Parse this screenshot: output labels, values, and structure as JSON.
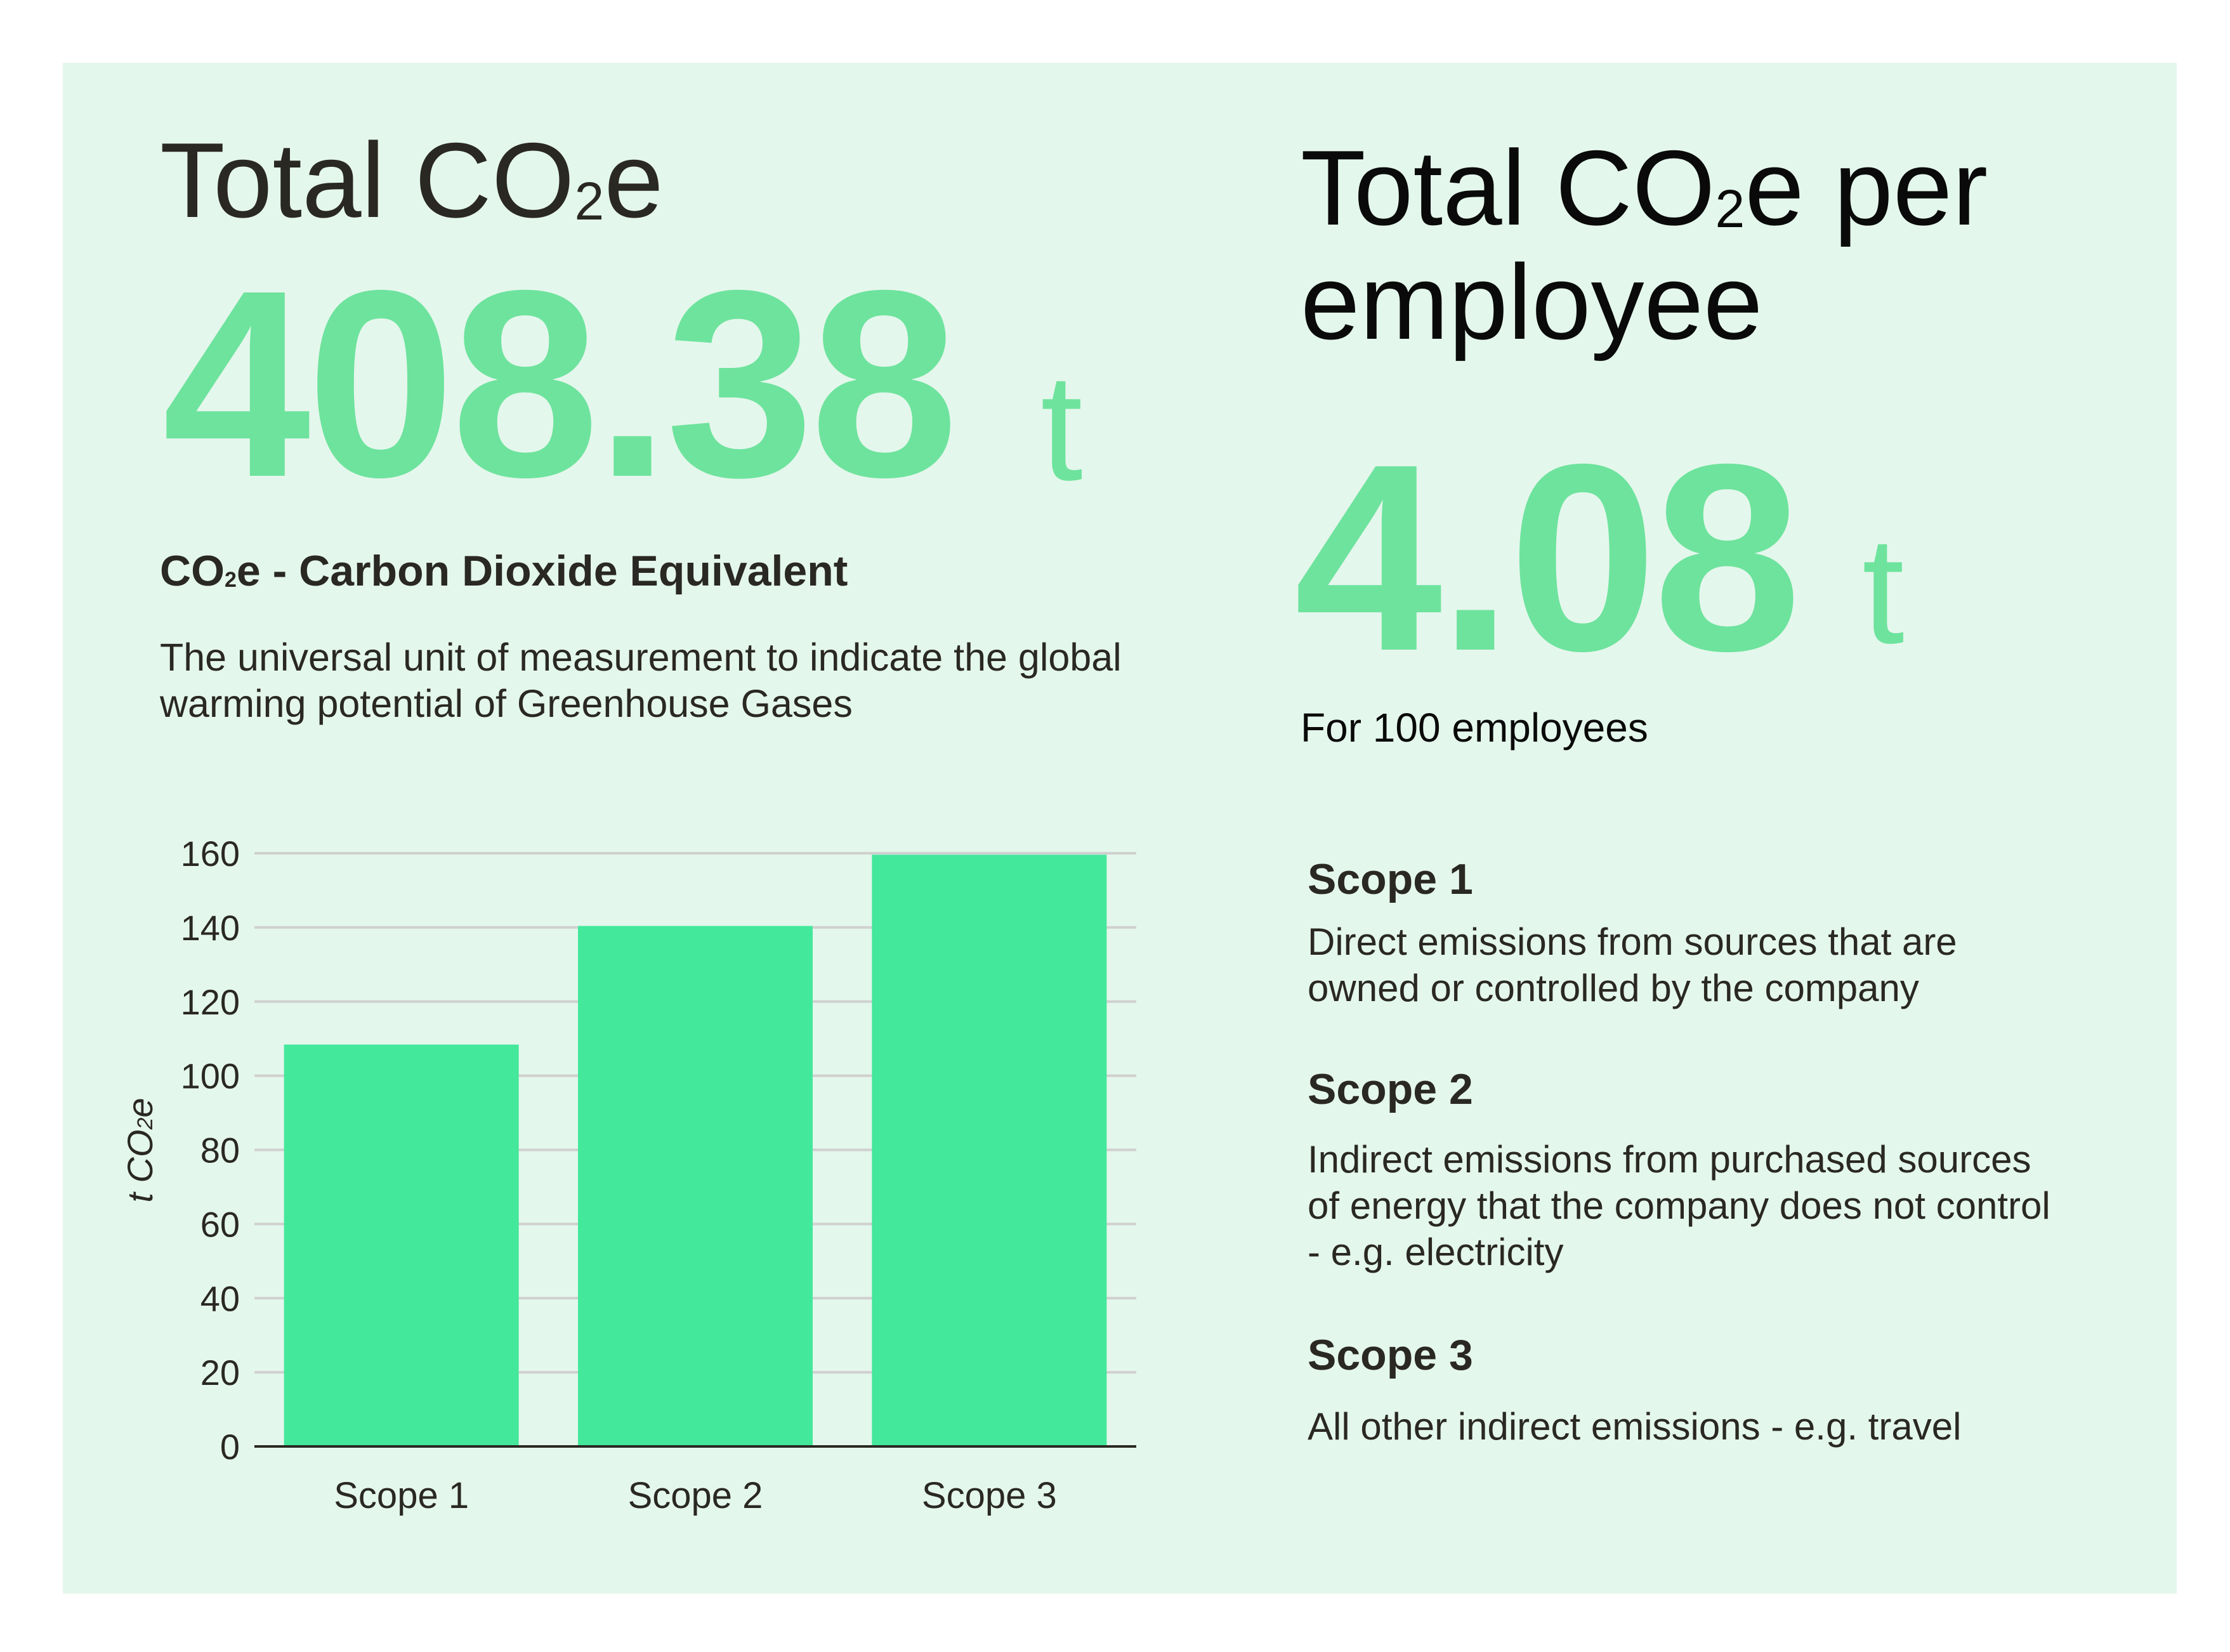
{
  "total": {
    "title_prefix": "Total CO",
    "title_sub": "2",
    "title_suffix": "e",
    "value": "408.38",
    "unit": "t",
    "definition_prefix": "CO",
    "definition_sub": "2",
    "definition_suffix": "e - Carbon Dioxide Equivalent",
    "description_line1": "The universal unit of measurement to indicate the global",
    "description_line2": "warming potential of Greenhouse Gases"
  },
  "per_employee": {
    "title_prefix": "Total CO",
    "title_sub": "2",
    "title_suffix": "e per",
    "title_line2": "employee",
    "value": "4.08",
    "unit": "t",
    "note": "For 100 employees"
  },
  "scopes": [
    {
      "title": "Scope 1",
      "lines": [
        "Direct emissions from sources that are",
        "owned or controlled by the company"
      ]
    },
    {
      "title": "Scope 2",
      "lines": [
        "Indirect emissions from purchased sources",
        "of energy that the company does not control",
        "- e.g. electricity"
      ]
    },
    {
      "title": "Scope 3",
      "lines": [
        "All other indirect emissions - e.g. travel"
      ]
    }
  ],
  "colors": {
    "background": "#e4f7ec",
    "accent": "#6ee39d",
    "bar": "#43e89b",
    "grid": "#d0d0d0",
    "text": "#2a2822"
  },
  "chart_data": {
    "type": "bar",
    "categories": [
      "Scope 1",
      "Scope 2",
      "Scope 3"
    ],
    "values": [
      108.4,
      140.4,
      159.6
    ],
    "xlabel": "",
    "ylabel": "t CO2e",
    "ylabel_prefix": "t CO",
    "ylabel_sub": "2",
    "ylabel_suffix": "e",
    "ylim": [
      0,
      160
    ],
    "yticks": [
      0,
      20,
      40,
      60,
      80,
      100,
      120,
      140,
      160
    ],
    "grid": true
  }
}
